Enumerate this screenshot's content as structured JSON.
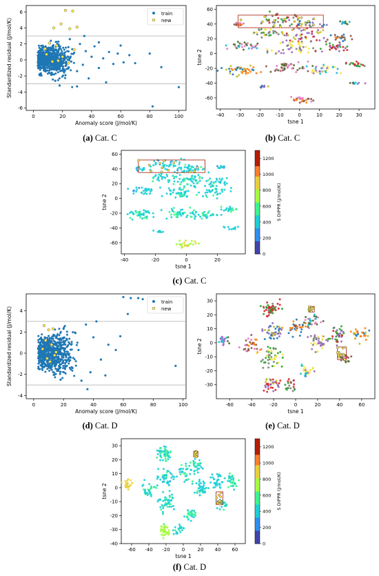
{
  "captions": {
    "a": {
      "tag": "(a)",
      "text": "Cat. C"
    },
    "b": {
      "tag": "(b)",
      "text": "Cat. C"
    },
    "c": {
      "tag": "(c)",
      "text": "Cat. C"
    },
    "d": {
      "tag": "(d)",
      "text": "Cat. D"
    },
    "e": {
      "tag": "(e)",
      "text": "Cat. D"
    },
    "f": {
      "tag": "(f)",
      "text": "Cat. D"
    }
  },
  "chart_data": [
    {
      "id": "a",
      "type": "scatter",
      "xlabel": "Anomaly score (J/mol/K)",
      "ylabel": "Standardized residual (J/mol/K)",
      "xlim": [
        -5,
        105
      ],
      "ylim": [
        -6.3,
        6.8
      ],
      "xticks": [
        0,
        20,
        40,
        60,
        80,
        100
      ],
      "yticks": [
        -6,
        -4,
        -2,
        0,
        2,
        4,
        6
      ],
      "hlines": [
        3,
        -3
      ],
      "legend_position": "top-right",
      "legend": [
        "train",
        "new"
      ],
      "series": [
        {
          "name": "train",
          "color": "#1f77b4",
          "points": [
            [
              5,
              0.1
            ],
            [
              8,
              -0.4
            ],
            [
              10,
              0.6
            ],
            [
              12,
              -1.1
            ],
            [
              14,
              0.3
            ],
            [
              16,
              1.2
            ],
            [
              18,
              -0.8
            ],
            [
              20,
              0.5
            ],
            [
              22,
              -1.9
            ],
            [
              24,
              1.6
            ],
            [
              26,
              -0.2
            ],
            [
              28,
              0.9
            ],
            [
              30,
              -1.4
            ],
            [
              32,
              2.0
            ],
            [
              34,
              -0.6
            ],
            [
              36,
              1.1
            ],
            [
              38,
              -2.3
            ],
            [
              40,
              0.4
            ],
            [
              42,
              1.7
            ],
            [
              45,
              -1.0
            ],
            [
              48,
              0.2
            ],
            [
              50,
              -2.8
            ],
            [
              52,
              1.0
            ],
            [
              55,
              -0.5
            ],
            [
              58,
              0.8
            ],
            [
              62,
              -0.3
            ],
            [
              66,
              0.6
            ],
            [
              70,
              -0.4
            ],
            [
              80,
              0.8
            ],
            [
              82,
              -5.8
            ],
            [
              88,
              -0.9
            ],
            [
              100,
              -3.4
            ],
            [
              15,
              -2.6
            ],
            [
              25,
              2.6
            ],
            [
              12,
              2.4
            ],
            [
              18,
              -3.2
            ],
            [
              30,
              -3.3
            ],
            [
              35,
              3.0
            ],
            [
              60,
              1.8
            ],
            [
              45,
              2.2
            ]
          ]
        },
        {
          "name": "new",
          "color": "#ffe94d",
          "points": [
            [
              22,
              6.2
            ],
            [
              27,
              6.1
            ],
            [
              14,
              4.0
            ],
            [
              19,
              4.5
            ],
            [
              25,
              3.9
            ],
            [
              30,
              4.1
            ],
            [
              11,
              2.1
            ],
            [
              16,
              1.8
            ],
            [
              9,
              0.7
            ],
            [
              13,
              -0.2
            ],
            [
              20,
              0.4
            ],
            [
              24,
              -0.4
            ],
            [
              17,
              -0.1
            ],
            [
              8,
              1.4
            ],
            [
              28,
              1.3
            ]
          ]
        }
      ]
    },
    {
      "id": "b",
      "type": "scatter",
      "xlabel": "tsne 1",
      "ylabel": "tsne 2",
      "xlim": [
        -42,
        38
      ],
      "ylim": [
        -75,
        65
      ],
      "xticks": [
        -40,
        -30,
        -20,
        -10,
        0,
        10,
        20,
        30
      ],
      "yticks": [
        -60,
        -40,
        -20,
        0,
        20,
        40,
        60
      ],
      "highlight_boxes": [
        [
          -31,
          35,
          12,
          52
        ]
      ],
      "color_encoding": "categorical clusters"
    },
    {
      "id": "c",
      "type": "scatter",
      "xlabel": "tsne 1",
      "ylabel": "tsne 2",
      "xlim": [
        -42,
        38
      ],
      "ylim": [
        -75,
        65
      ],
      "xticks": [
        -40,
        -20,
        0,
        20
      ],
      "yticks": [
        -60,
        -40,
        -20,
        0,
        20,
        40,
        60
      ],
      "highlight_boxes": [
        [
          -31,
          35,
          12,
          52
        ]
      ],
      "colorbar": {
        "label": "S DIPPR (J/mol/K)",
        "range": [
          0,
          1300
        ],
        "ticks": [
          0,
          200,
          400,
          600,
          800,
          1000,
          1200
        ]
      }
    },
    {
      "id": "d",
      "type": "scatter",
      "xlabel": "Anomaly score (J/mol/K)",
      "ylabel": "Standardized residual (J/mol/K)",
      "xlim": [
        -5,
        102
      ],
      "ylim": [
        -4.3,
        5.6
      ],
      "xticks": [
        0,
        20,
        40,
        60,
        80,
        100
      ],
      "yticks": [
        -4,
        -2,
        0,
        2,
        4
      ],
      "hlines": [
        3,
        -3
      ],
      "legend_position": "top-right",
      "legend": [
        "train",
        "new"
      ],
      "series": [
        {
          "name": "train",
          "color": "#1f77b4",
          "points": [
            [
              60,
              5.3
            ],
            [
              65,
              5.2
            ],
            [
              70,
              5.2
            ],
            [
              73,
              5.1
            ],
            [
              63,
              3.7
            ],
            [
              58,
              1.6
            ],
            [
              55,
              0.3
            ],
            [
              48,
              -2.1
            ],
            [
              50,
              0.8
            ],
            [
              45,
              -0.6
            ],
            [
              40,
              1.5
            ],
            [
              38,
              -1.8
            ],
            [
              35,
              2.7
            ],
            [
              32,
              -2.6
            ],
            [
              30,
              0.3
            ],
            [
              28,
              1.9
            ],
            [
              26,
              -1.4
            ],
            [
              24,
              0.9
            ],
            [
              22,
              -0.8
            ],
            [
              20,
              2.3
            ],
            [
              18,
              -2.5
            ],
            [
              16,
              0.5
            ],
            [
              14,
              -1.2
            ],
            [
              12,
              1.4
            ],
            [
              10,
              -0.3
            ],
            [
              8,
              0.6
            ],
            [
              6,
              -0.9
            ],
            [
              95,
              -1.2
            ],
            [
              42,
              3.0
            ],
            [
              36,
              -3.4
            ]
          ]
        },
        {
          "name": "new",
          "color": "#ffe94d",
          "points": [
            [
              7,
              2.6
            ],
            [
              10,
              2.2
            ],
            [
              13,
              2.3
            ],
            [
              8,
              1.2
            ],
            [
              12,
              0.8
            ],
            [
              15,
              0.1
            ],
            [
              9,
              -0.5
            ],
            [
              11,
              -0.8
            ],
            [
              6,
              0.4
            ],
            [
              14,
              -0.2
            ]
          ]
        }
      ]
    },
    {
      "id": "e",
      "type": "scatter",
      "xlabel": "tsne 1",
      "ylabel": "tsne 2",
      "xlim": [
        -72,
        72
      ],
      "ylim": [
        -40,
        35
      ],
      "xticks": [
        -60,
        -40,
        -20,
        0,
        20,
        40,
        60
      ],
      "yticks": [
        -30,
        -20,
        -10,
        0,
        10,
        20,
        30
      ],
      "highlight_boxes": [
        [
          12,
          22,
          17,
          26
        ],
        [
          38,
          -12,
          46,
          -3
        ]
      ],
      "color_encoding": "categorical clusters"
    },
    {
      "id": "f",
      "type": "scatter",
      "xlabel": "tsne 1",
      "ylabel": "tsne 2",
      "xlim": [
        -72,
        72
      ],
      "ylim": [
        -40,
        35
      ],
      "xticks": [
        -60,
        -40,
        -20,
        0,
        20,
        40,
        60
      ],
      "yticks": [
        -40,
        -30,
        -20,
        -10,
        0,
        10,
        20,
        30
      ],
      "highlight_boxes": [
        [
          12,
          22,
          17,
          26
        ],
        [
          38,
          -12,
          46,
          -3
        ]
      ],
      "colorbar": {
        "label": "S DIPPR (J/mol/K)",
        "range": [
          0,
          1300
        ],
        "ticks": [
          0,
          200,
          400,
          600,
          800,
          1000,
          1200
        ]
      }
    }
  ]
}
